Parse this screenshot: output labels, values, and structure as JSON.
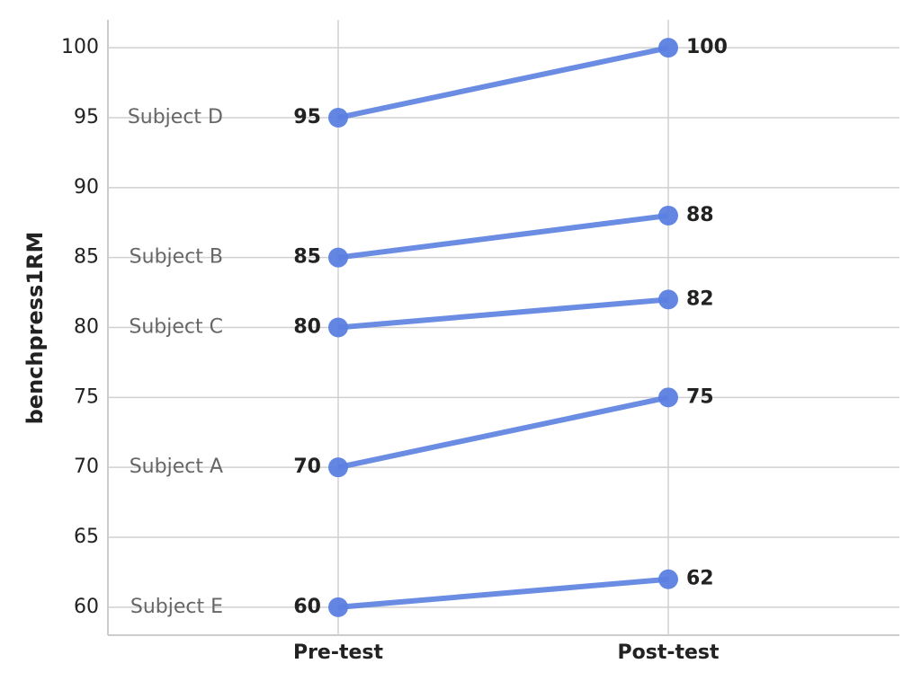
{
  "chart_data": {
    "type": "slope",
    "y_label": "benchpress1RM",
    "categories": [
      "Pre-test",
      "Post-test"
    ],
    "series": [
      {
        "name": "Subject A",
        "color": "#5b7fe0",
        "values": [
          70,
          75
        ]
      },
      {
        "name": "Subject B",
        "color": "#5b7fe0",
        "values": [
          85,
          88
        ]
      },
      {
        "name": "Subject C",
        "color": "#5b7fe0",
        "values": [
          80,
          82
        ]
      },
      {
        "name": "Subject D",
        "color": "#5b7fe0",
        "values": [
          95,
          100
        ]
      },
      {
        "name": "Subject E",
        "color": "#5b7fe0",
        "values": [
          60,
          62
        ]
      }
    ],
    "ylim": [
      58,
      102
    ],
    "yticks": [
      60,
      65,
      70,
      75,
      80,
      85,
      90,
      95,
      100
    ],
    "grid": true
  }
}
